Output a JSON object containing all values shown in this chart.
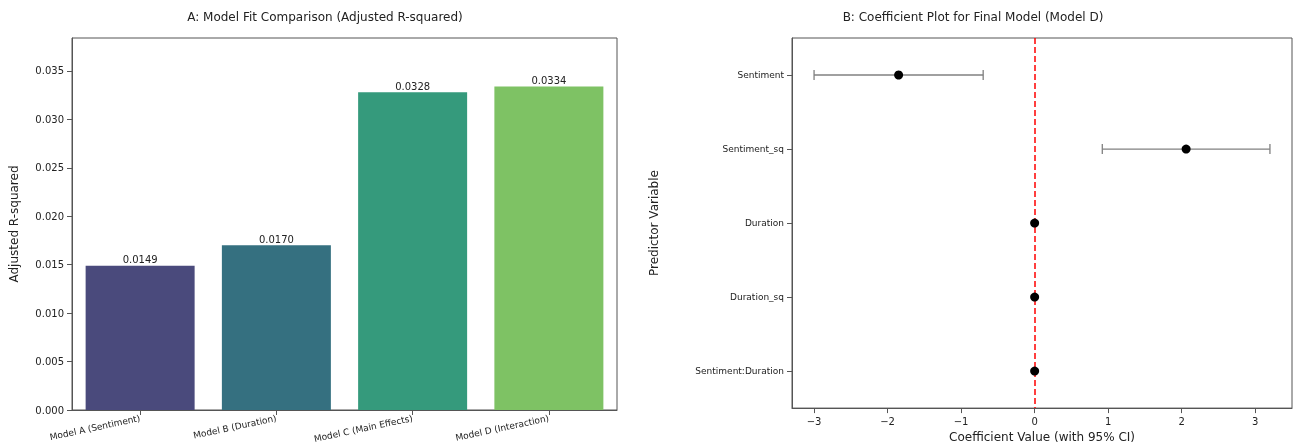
{
  "chart_data": [
    {
      "type": "bar",
      "title": "A: Model Fit Comparison (Adjusted R-squared)",
      "ylabel": "Adjusted R-squared",
      "categories": [
        "Model A (Sentiment)",
        "Model B (Duration)",
        "Model C (Main Effects)",
        "Model D (Interaction)"
      ],
      "values": [
        0.0149,
        0.017,
        0.0328,
        0.0334
      ],
      "colors": [
        "#4a4a7c",
        "#357080",
        "#359a7c",
        "#7ec264"
      ],
      "value_labels": [
        "0.0149",
        "0.0170",
        "0.0328",
        "0.0334"
      ],
      "ylim": [
        0,
        0.0384
      ],
      "yticks": [
        {
          "value": 0,
          "label": "0.000"
        },
        {
          "value": 0.005,
          "label": "0.005"
        },
        {
          "value": 0.01,
          "label": "0.010"
        },
        {
          "value": 0.015,
          "label": "0.015"
        },
        {
          "value": 0.02,
          "label": "0.020"
        },
        {
          "value": 0.025,
          "label": "0.025"
        },
        {
          "value": 0.03,
          "label": "0.030"
        },
        {
          "value": 0.035,
          "label": "0.035"
        }
      ],
      "grid": false
    },
    {
      "type": "scatter",
      "orientation": "horizontal",
      "title": "B: Coefficient Plot for Final Model (Model D)",
      "xlabel": "Coefficient Value (with 95% CI)",
      "ylabel": "Predictor Variable",
      "categories": [
        "Sentiment",
        "Sentiment_sq",
        "Duration",
        "Duration_sq",
        "Sentiment:Duration"
      ],
      "values": [
        -1.85,
        2.06,
        0,
        0,
        0
      ],
      "errors": [
        1.15,
        1.14,
        null,
        null,
        null
      ],
      "color": "#000000",
      "marker": "circle",
      "xlim": [
        -3.3,
        3.5
      ],
      "xticks": [
        {
          "value": -3,
          "label": "−3"
        },
        {
          "value": -2,
          "label": "−2"
        },
        {
          "value": -1,
          "label": "−1"
        },
        0,
        1,
        2,
        3
      ],
      "ref_lines": [
        {
          "axis": "x",
          "value": 0,
          "color": "#ff0000",
          "line_style": "dashed"
        }
      ],
      "grid": false
    }
  ]
}
